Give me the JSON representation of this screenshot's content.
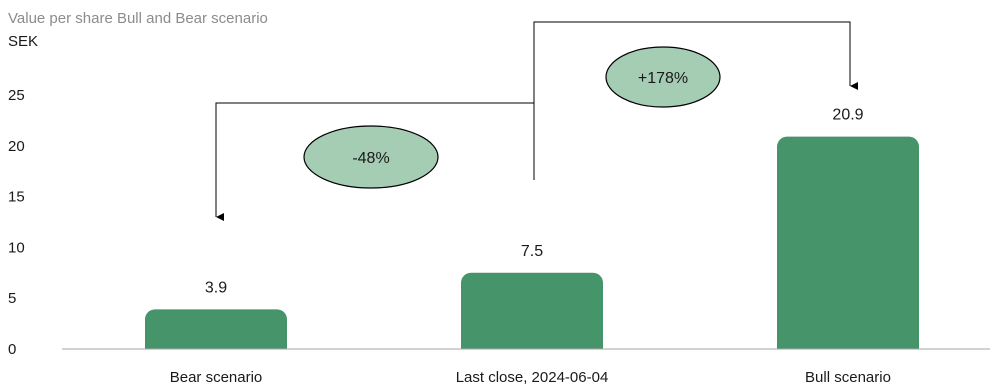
{
  "chart_data": {
    "type": "bar",
    "title": "Value per share Bull and Bear scenario",
    "ylabel": "SEK",
    "categories": [
      "Bear scenario",
      "Last close, 2024-06-04",
      "Bull scenario"
    ],
    "values": [
      3.9,
      7.5,
      20.9
    ],
    "data_labels": [
      "3.9",
      "7.5",
      "20.9"
    ],
    "yticks": [
      0,
      5,
      10,
      15,
      20,
      25
    ],
    "ylim": [
      0,
      25
    ],
    "grid": false,
    "bar_color": "#46946a",
    "annotations": [
      {
        "text": "-48%",
        "from": "Last close, 2024-06-04",
        "to": "Bear scenario",
        "fill": "#a5cdb4"
      },
      {
        "text": "+178%",
        "from": "Last close, 2024-06-04",
        "to": "Bull scenario",
        "fill": "#a5cdb4"
      }
    ]
  }
}
